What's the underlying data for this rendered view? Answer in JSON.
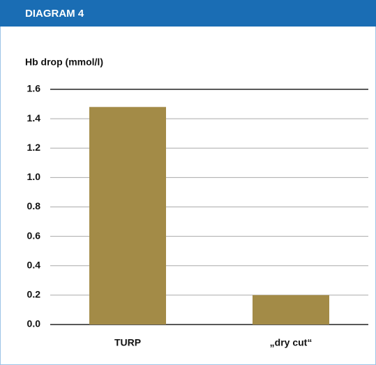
{
  "chart_data": {
    "type": "bar",
    "header": "DIAGRAM 4",
    "ylabel": "Hb drop (mmol/l)",
    "categories": [
      "TURP",
      "„dry cut“"
    ],
    "values": [
      1.48,
      0.2
    ],
    "color": "#a38b47",
    "ylim": [
      0,
      1.6
    ],
    "yticks": [
      {
        "value": 0,
        "label": "0.0"
      },
      0.2,
      0.4,
      0.6,
      0.8,
      {
        "value": 1,
        "label": "1.0"
      },
      1.2,
      1.4,
      1.6
    ],
    "grid": true
  }
}
